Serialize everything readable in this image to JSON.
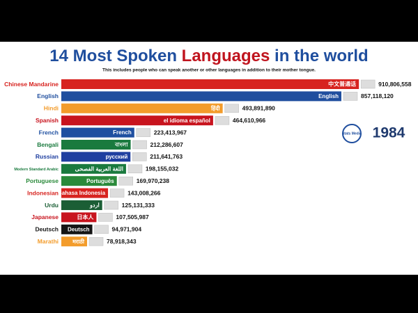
{
  "chart_data": {
    "type": "bar",
    "orientation": "horizontal",
    "title": "14 Most Spoken Languages in the world",
    "title_highlight": "Languages",
    "subtitle": "This includes people who can speak another or other languages in addition to their mother tongue.",
    "year": "1984",
    "logo": "Stats Media",
    "categories": [
      "Chinese Mandarine",
      "English",
      "Hindi",
      "Spanish",
      "French",
      "Bengali",
      "Russian",
      "Modern Standard Arabic",
      "Portuguese",
      "Indonesian",
      "Urdu",
      "Japanese",
      "Deutsch",
      "Marathi"
    ],
    "bar_labels": [
      "中文普通话",
      "English",
      "हिंदी",
      "el idioma español",
      "French",
      "বাংলা",
      "русский",
      "اللغة العربية الفصحى",
      "Português",
      "Bahasa Indonesia",
      "اردو",
      "日本人",
      "Deutsch",
      "मराठी"
    ],
    "values": [
      910806558,
      857118120,
      493891890,
      464610966,
      223413967,
      212286607,
      211641763,
      198155032,
      169970238,
      143008266,
      125131333,
      107505987,
      94971904,
      78918343
    ],
    "value_labels": [
      "910,806,558",
      "857,118,120",
      "493,891,890",
      "464,610,966",
      "223,413,967",
      "212,286,607",
      "211,641,763",
      "198,155,032",
      "169,970,238",
      "143,008,266",
      "125,131,333",
      "107,505,987",
      "94,971,904",
      "78,918,343"
    ],
    "colors": [
      "#d7231f",
      "#1f4e9e",
      "#f39c2b",
      "#c8141e",
      "#1e4fa0",
      "#1a7a3e",
      "#1f3fa0",
      "#1a7a3e",
      "#2a8a3a",
      "#d7231f",
      "#1b5e35",
      "#c8141e",
      "#151515",
      "#f39c2b"
    ],
    "xlim": [
      0,
      1000000000
    ]
  }
}
